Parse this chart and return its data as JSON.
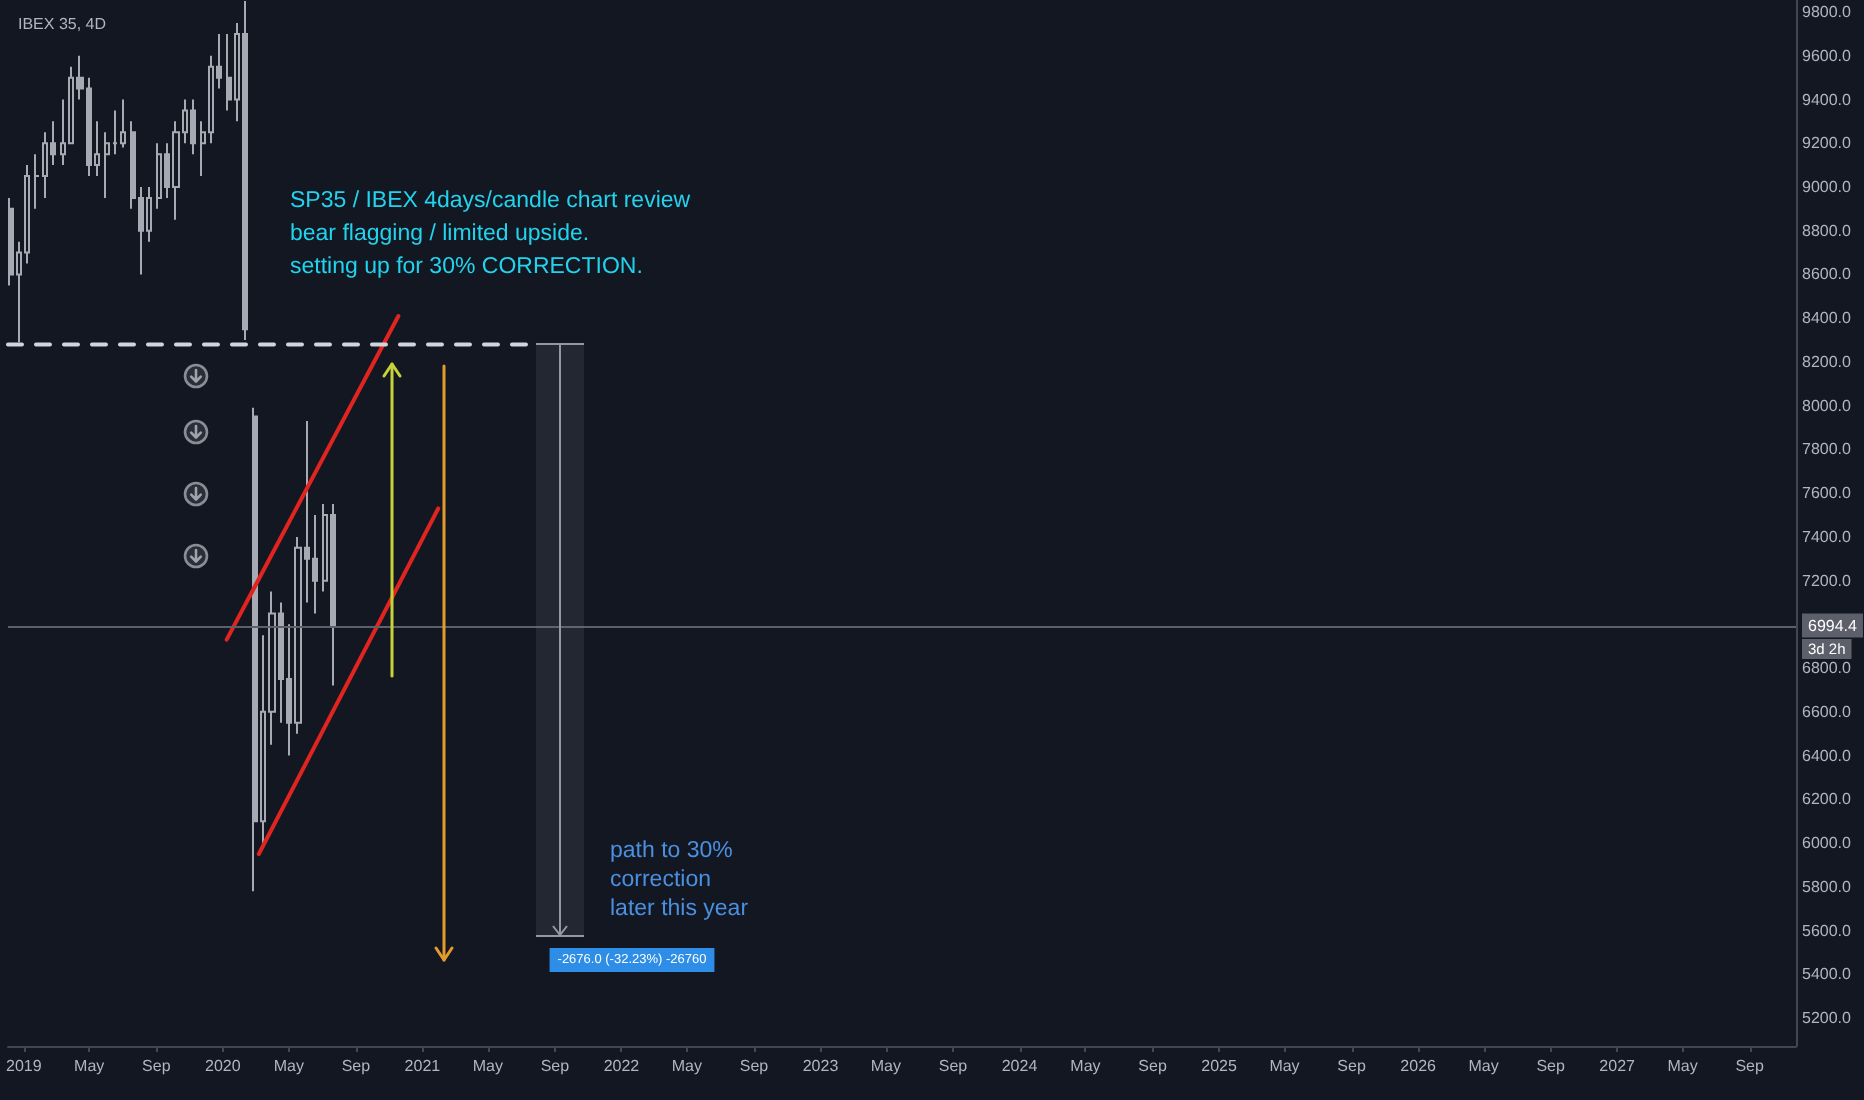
{
  "chart_data": {
    "type": "candlestick",
    "title": "IBEX 35, 4D",
    "color": "#a7aab3",
    "x": [
      "2018-12-07",
      "2018-12-23",
      "2019-01-08",
      "2019-01-24",
      "2019-02-09",
      "2019-02-25",
      "2019-03-13",
      "2019-03-29",
      "2019-04-14",
      "2019-04-30",
      "2019-05-16",
      "2019-06-01",
      "2019-06-17",
      "2019-07-03",
      "2019-07-19",
      "2019-08-04",
      "2019-08-20",
      "2019-09-05",
      "2019-09-21",
      "2019-10-07",
      "2019-10-23",
      "2019-11-08",
      "2019-11-24",
      "2019-12-10",
      "2019-12-26",
      "2020-01-11",
      "2020-01-27",
      "2020-02-12",
      "2020-02-28",
      "2020-03-15",
      "2020-03-31",
      "2020-04-16",
      "2020-05-02",
      "2020-05-18",
      "2020-06-03",
      "2020-06-19",
      "2020-07-05",
      "2020-07-21"
    ],
    "ohlc": [
      [
        8900,
        8950,
        8550,
        8600
      ],
      [
        8600,
        8750,
        8290,
        8700
      ],
      [
        8700,
        9100,
        8650,
        9050
      ],
      [
        9050,
        9150,
        8900,
        9050
      ],
      [
        9050,
        9250,
        8950,
        9200
      ],
      [
        9200,
        9300,
        9100,
        9150
      ],
      [
        9150,
        9400,
        9100,
        9200
      ],
      [
        9200,
        9550,
        9200,
        9500
      ],
      [
        9500,
        9600,
        9400,
        9450
      ],
      [
        9450,
        9500,
        9050,
        9100
      ],
      [
        9100,
        9300,
        9050,
        9150
      ],
      [
        9150,
        9250,
        8950,
        9200
      ],
      [
        9200,
        9350,
        9150,
        9200
      ],
      [
        9200,
        9400,
        9180,
        9250
      ],
      [
        9250,
        9300,
        8900,
        8950
      ],
      [
        8950,
        9000,
        8600,
        8800
      ],
      [
        8800,
        9000,
        8750,
        8950
      ],
      [
        8950,
        9200,
        8900,
        9150
      ],
      [
        9150,
        9200,
        8950,
        9000
      ],
      [
        9000,
        9300,
        8850,
        9250
      ],
      [
        9250,
        9400,
        9200,
        9350
      ],
      [
        9350,
        9400,
        9150,
        9200
      ],
      [
        9200,
        9300,
        9050,
        9250
      ],
      [
        9250,
        9600,
        9200,
        9550
      ],
      [
        9550,
        9700,
        9450,
        9500
      ],
      [
        9500,
        9700,
        9350,
        9400
      ],
      [
        9400,
        9750,
        9300,
        9700
      ],
      [
        9700,
        9850,
        8300,
        8350
      ],
      [
        7950,
        7990,
        5780,
        6100
      ],
      [
        6100,
        6950,
        6000,
        6600
      ],
      [
        6600,
        7150,
        6450,
        7050
      ],
      [
        7050,
        7100,
        6550,
        6750
      ],
      [
        6750,
        7000,
        6400,
        6550
      ],
      [
        6550,
        7400,
        6500,
        7350
      ],
      [
        7350,
        7930,
        7100,
        7300
      ],
      [
        7300,
        7500,
        7050,
        7200
      ],
      [
        7200,
        7550,
        7150,
        7500
      ],
      [
        7500,
        7550,
        6720,
        6994.4
      ]
    ],
    "series": [
      {
        "type": "line",
        "color": "#e0241f",
        "x": [
          "2020-01-08",
          "2020-11-18"
        ],
        "values": [
          6930,
          8410
        ]
      },
      {
        "type": "line",
        "color": "#e0241f",
        "x": [
          "2020-03-07",
          "2021-01-30"
        ],
        "values": [
          5950,
          7530
        ]
      },
      {
        "type": "line",
        "color": "#d1d4dc",
        "line_style": "dashed",
        "x": [
          "2018-12-03",
          "2021-07-18"
        ],
        "values": [
          8280,
          8280
        ]
      }
    ],
    "xlim": [
      "2018-12-03",
      "2027-11-25"
    ],
    "xticks": [
      {
        "value": "2019-01-01",
        "label": "2019"
      },
      {
        "value": "2019-05-01",
        "label": "May"
      },
      {
        "value": "2019-09-01",
        "label": "Sep"
      },
      {
        "value": "2020-01-01",
        "label": "2020"
      },
      {
        "value": "2020-05-01",
        "label": "May"
      },
      {
        "value": "2020-09-01",
        "label": "Sep"
      },
      {
        "value": "2021-01-01",
        "label": "2021"
      },
      {
        "value": "2021-05-01",
        "label": "May"
      },
      {
        "value": "2021-09-01",
        "label": "Sep"
      },
      {
        "value": "2022-01-01",
        "label": "2022"
      },
      {
        "value": "2022-05-01",
        "label": "May"
      },
      {
        "value": "2022-09-01",
        "label": "Sep"
      },
      {
        "value": "2023-01-01",
        "label": "2023"
      },
      {
        "value": "2023-05-01",
        "label": "May"
      },
      {
        "value": "2023-09-01",
        "label": "Sep"
      },
      {
        "value": "2024-01-01",
        "label": "2024"
      },
      {
        "value": "2024-05-01",
        "label": "May"
      },
      {
        "value": "2024-09-01",
        "label": "Sep"
      },
      {
        "value": "2025-01-01",
        "label": "2025"
      },
      {
        "value": "2025-05-01",
        "label": "May"
      },
      {
        "value": "2025-09-01",
        "label": "Sep"
      },
      {
        "value": "2026-01-01",
        "label": "2026"
      },
      {
        "value": "2026-05-01",
        "label": "May"
      },
      {
        "value": "2026-09-01",
        "label": "Sep"
      },
      {
        "value": "2027-01-01",
        "label": "2027"
      },
      {
        "value": "2027-05-01",
        "label": "May"
      },
      {
        "value": "2027-09-01",
        "label": "Sep"
      }
    ],
    "ylim": [
      5072,
      9855
    ],
    "yticks": [
      {
        "value": 5200,
        "label": "5200.0"
      },
      {
        "value": 5400,
        "label": "5400.0"
      },
      {
        "value": 5600,
        "label": "5600.0"
      },
      {
        "value": 5800,
        "label": "5800.0"
      },
      {
        "value": 6000,
        "label": "6000.0"
      },
      {
        "value": 6200,
        "label": "6200.0"
      },
      {
        "value": 6400,
        "label": "6400.0"
      },
      {
        "value": 6600,
        "label": "6600.0"
      },
      {
        "value": 6800,
        "label": "6800.0"
      },
      {
        "value": 7200,
        "label": "7200.0"
      },
      {
        "value": 7400,
        "label": "7400.0"
      },
      {
        "value": 7600,
        "label": "7600.0"
      },
      {
        "value": 7800,
        "label": "7800.0"
      },
      {
        "value": 8000,
        "label": "8000.0"
      },
      {
        "value": 8200,
        "label": "8200.0"
      },
      {
        "value": 8400,
        "label": "8400.0"
      },
      {
        "value": 8600,
        "label": "8600.0"
      },
      {
        "value": 8800,
        "label": "8800.0"
      },
      {
        "value": 9000,
        "label": "9000.0"
      },
      {
        "value": 9200,
        "label": "9200.0"
      },
      {
        "value": 9400,
        "label": "9400.0"
      },
      {
        "value": 9600,
        "label": "9600.0"
      },
      {
        "value": 9800,
        "label": "9800.0"
      }
    ],
    "ref_lines": [
      {
        "axis": "y",
        "value": 6994.4,
        "label": "6994.4",
        "color": "#5d606b"
      }
    ],
    "annotations": [
      "SP35 / IBEX 4days/candle chart review\nbear flagging / limited upside.\nsetting up for 30% CORRECTION.",
      "path to 30%\ncorrection\nlater this year",
      "-2676.0 (-32.23%) -26760",
      "3d 2h"
    ]
  }
}
